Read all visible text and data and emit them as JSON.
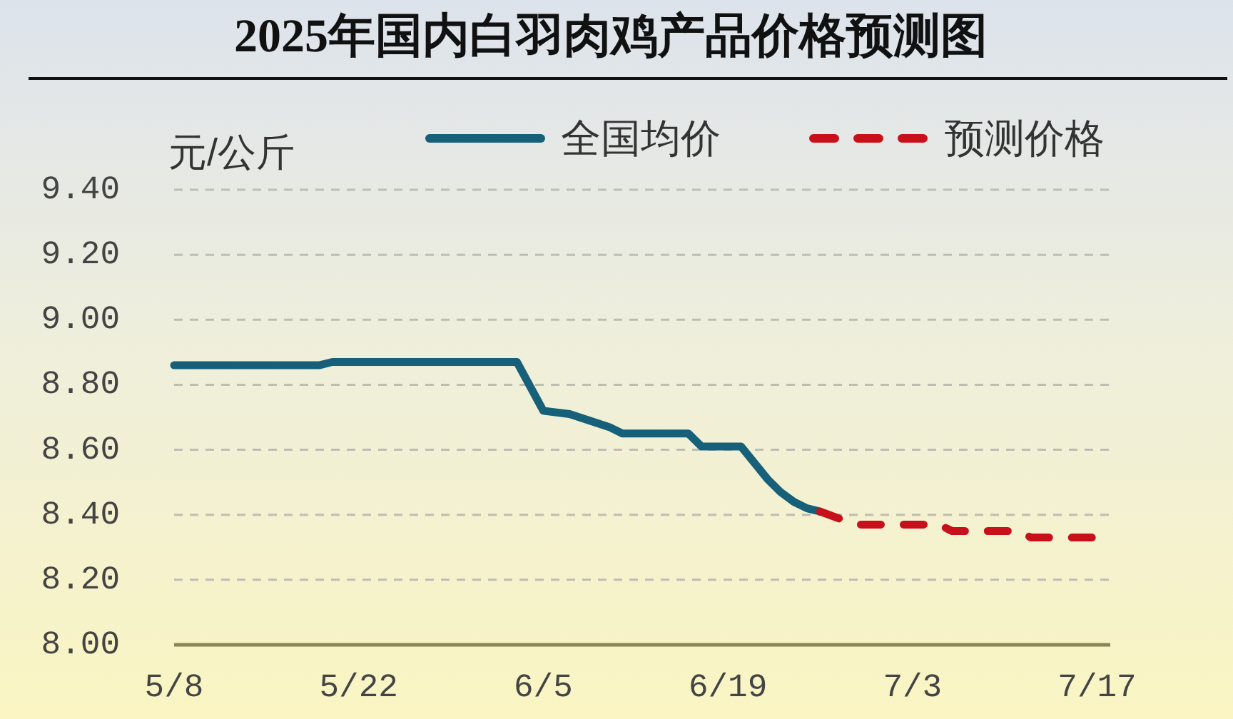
{
  "chart_data": {
    "type": "line",
    "title": "2025年国内白羽肉鸡产品价格预测图",
    "ylabel": "元/公斤",
    "xlim": [
      "2025-05-08",
      "2025-07-18"
    ],
    "xticks": [
      {
        "value": "2025-05-08",
        "label": "5/8"
      },
      {
        "value": "2025-05-22",
        "label": "5/22"
      },
      {
        "value": "2025-06-05",
        "label": "6/5"
      },
      {
        "value": "2025-06-19",
        "label": "6/19"
      },
      {
        "value": "2025-07-03",
        "label": "7/3"
      },
      {
        "value": "2025-07-17",
        "label": "7/17"
      }
    ],
    "ylim": [
      8.0,
      9.4
    ],
    "yticks": [
      {
        "value": 8.0,
        "label": "8.00"
      },
      {
        "value": 8.2,
        "label": "8.20"
      },
      {
        "value": 8.4,
        "label": "8.40"
      },
      {
        "value": 8.6,
        "label": "8.60"
      },
      {
        "value": 8.8,
        "label": "8.80"
      },
      {
        "value": 9.0,
        "label": "9.00"
      },
      {
        "value": 9.2,
        "label": "9.20"
      },
      {
        "value": 9.4,
        "label": "9.40"
      }
    ],
    "grid": "y",
    "legend": "top",
    "marker": "none",
    "series": [
      {
        "name": "全国均价",
        "color": "#17607a",
        "line_style": "solid",
        "x": [
          "2025-05-08",
          "2025-05-19",
          "2025-05-20",
          "2025-06-03",
          "2025-06-05",
          "2025-06-07",
          "2025-06-10",
          "2025-06-11",
          "2025-06-16",
          "2025-06-17",
          "2025-06-20",
          "2025-06-21",
          "2025-06-22",
          "2025-06-23",
          "2025-06-24",
          "2025-06-25",
          "2025-06-26"
        ],
        "values": [
          8.86,
          8.86,
          8.87,
          8.87,
          8.72,
          8.71,
          8.67,
          8.65,
          8.65,
          8.61,
          8.61,
          8.56,
          8.51,
          8.47,
          8.44,
          8.42,
          8.41
        ]
      },
      {
        "name": "预测价格",
        "color": "#c8101a",
        "line_style": "dashed",
        "x": [
          "2025-06-26",
          "2025-06-28",
          "2025-06-29",
          "2025-07-05",
          "2025-07-06",
          "2025-07-11",
          "2025-07-12",
          "2025-07-18"
        ],
        "values": [
          8.41,
          8.38,
          8.37,
          8.37,
          8.35,
          8.35,
          8.33,
          8.33
        ]
      }
    ]
  }
}
